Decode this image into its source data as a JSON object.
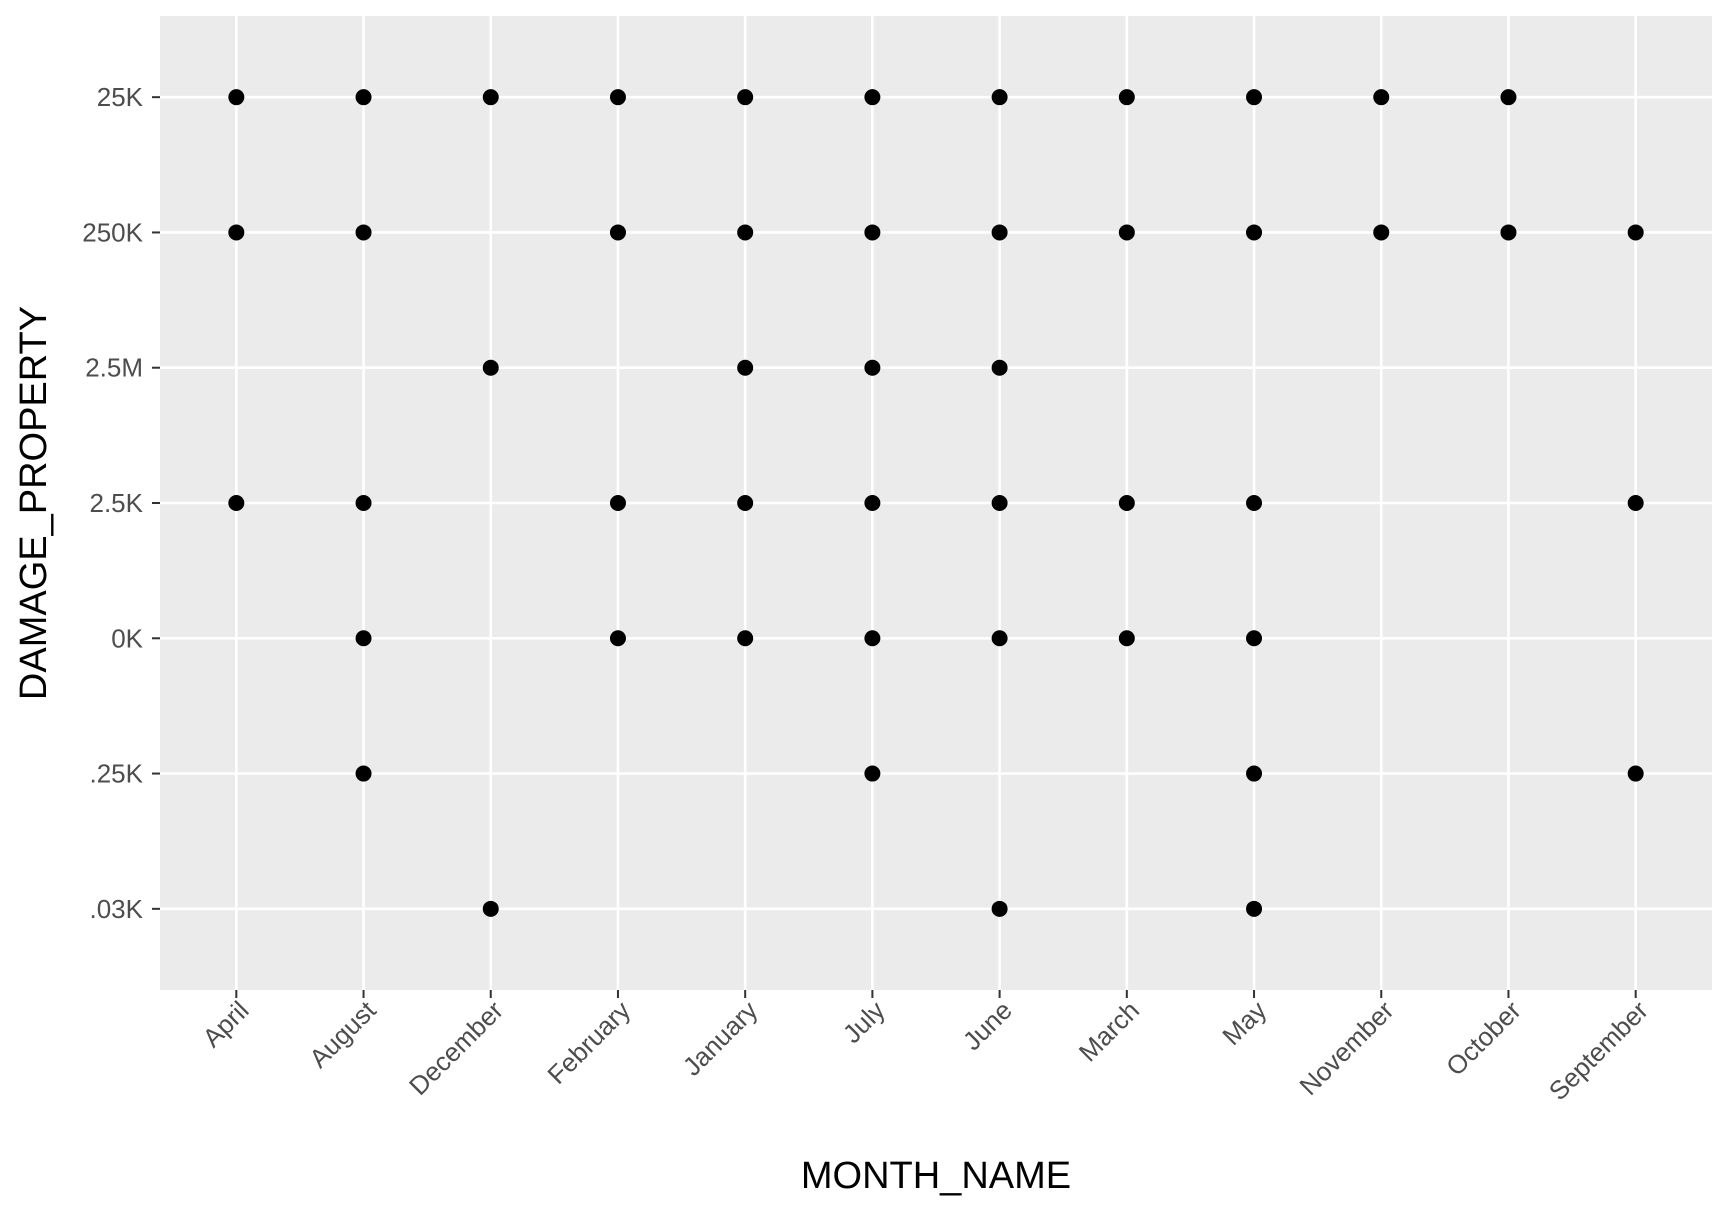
{
  "chart_data": {
    "type": "scatter",
    "x_label": "MONTH_NAME",
    "y_label": "DAMAGE_PROPERTY",
    "categories": [
      "April",
      "August",
      "December",
      "February",
      "January",
      "July",
      "June",
      "March",
      "May",
      "November",
      "October",
      "September"
    ],
    "y_categories": [
      ".03K",
      ".25K",
      "0K",
      "2.5K",
      "2.5M",
      "250K",
      "25K"
    ],
    "color": "#000000",
    "grid": true,
    "x": [
      "April",
      "April",
      "April",
      "August",
      "August",
      "August",
      "August",
      "August",
      "December",
      "December",
      "December",
      "February",
      "February",
      "February",
      "February",
      "January",
      "January",
      "January",
      "January",
      "January",
      "July",
      "July",
      "July",
      "July",
      "July",
      "July",
      "June",
      "June",
      "June",
      "June",
      "June",
      "June",
      "March",
      "March",
      "March",
      "March",
      "May",
      "May",
      "May",
      "May",
      "May",
      "May",
      "November",
      "November",
      "October",
      "October",
      "September",
      "September",
      "September"
    ],
    "y": [
      "25K",
      "250K",
      "2.5K",
      "25K",
      "250K",
      "2.5K",
      "0K",
      ".25K",
      "25K",
      "2.5M",
      ".03K",
      "25K",
      "250K",
      "2.5K",
      "0K",
      "25K",
      "250K",
      "2.5M",
      "2.5K",
      "0K",
      "25K",
      "250K",
      "2.5M",
      "2.5K",
      "0K",
      ".25K",
      "25K",
      "250K",
      "2.5M",
      "2.5K",
      "0K",
      ".03K",
      "25K",
      "250K",
      "2.5K",
      "0K",
      "25K",
      "250K",
      "2.5K",
      "0K",
      ".25K",
      ".03K",
      "25K",
      "250K",
      "25K",
      "250K",
      "250K",
      "2.5K",
      ".25K"
    ]
  }
}
